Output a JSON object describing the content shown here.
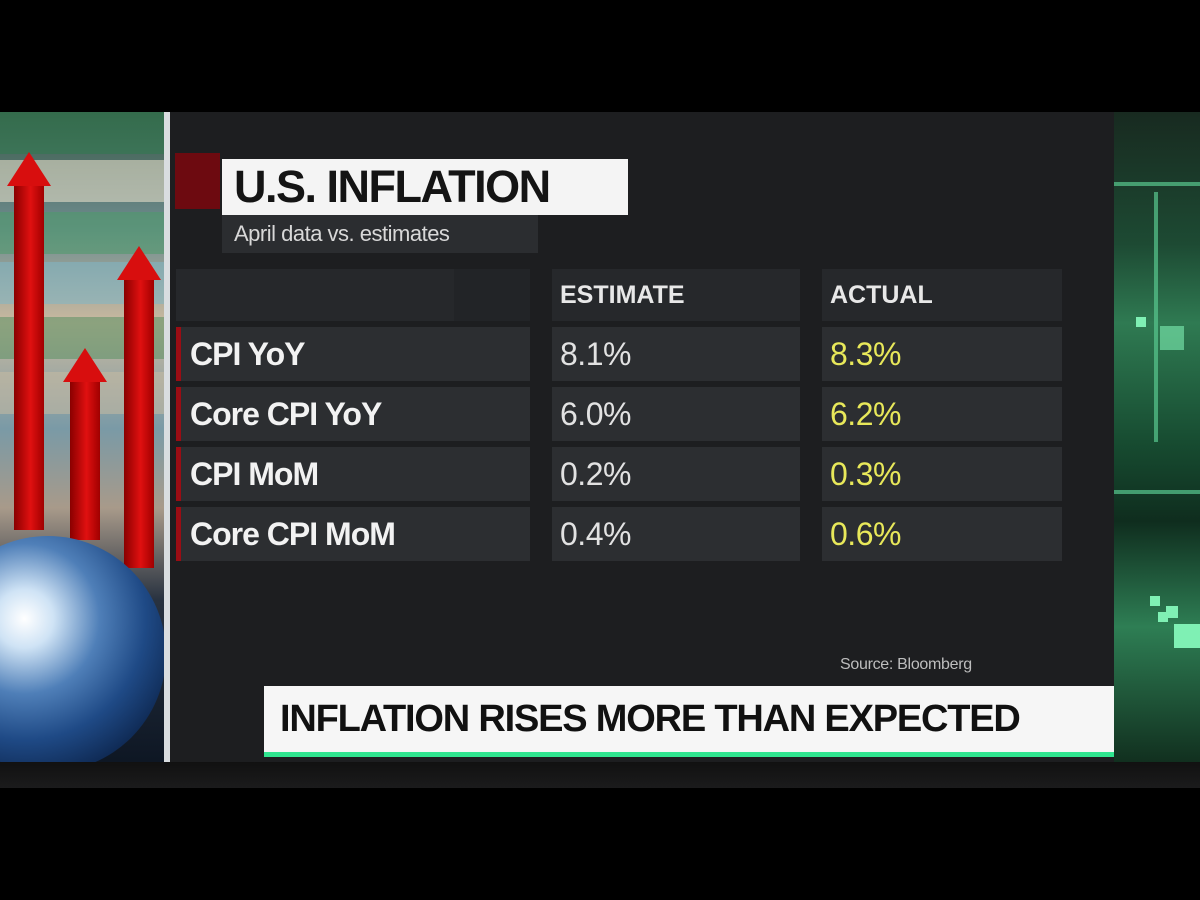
{
  "board": {
    "title": "U.S. INFLATION",
    "subtitle": "April data vs. estimates",
    "source": "Source: Bloomberg",
    "banner": "INFLATION RISES MORE THAN EXPECTED"
  },
  "colors": {
    "actual_value": "#e8e85a",
    "accent_red": "#9a0d14",
    "banner_underline": "#2fe58f"
  },
  "chart_data": {
    "type": "table",
    "title": "U.S. INFLATION",
    "subtitle": "April data vs. estimates",
    "columns": [
      "",
      "ESTIMATE",
      "ACTUAL"
    ],
    "rows": [
      {
        "label": "CPI YoY",
        "estimate": "8.1%",
        "actual": "8.3%"
      },
      {
        "label": "Core CPI YoY",
        "estimate": "6.0%",
        "actual": "6.2%"
      },
      {
        "label": "CPI MoM",
        "estimate": "0.2%",
        "actual": "0.3%"
      },
      {
        "label": "Core CPI MoM",
        "estimate": "0.4%",
        "actual": "0.6%"
      }
    ]
  }
}
